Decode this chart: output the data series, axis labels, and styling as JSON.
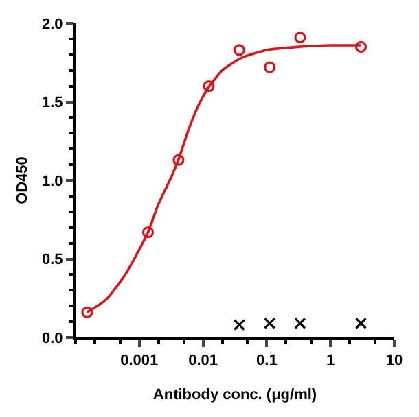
{
  "chart_data": {
    "type": "scatter",
    "xlabel": "Antibody conc. (μg/ml)",
    "ylabel": "OD450",
    "log": "x",
    "xlim": [
      0.0001,
      10
    ],
    "xticks": [
      0.001,
      0.01,
      0.1,
      1,
      10
    ],
    "ylim": [
      0,
      2.0
    ],
    "yticks": [
      {
        "value": 0,
        "label": "0.0"
      },
      0.5,
      {
        "value": 1,
        "label": "1.0"
      },
      1.5,
      {
        "value": 2,
        "label": "2.0"
      }
    ],
    "series": [
      {
        "type": "line",
        "color": "#d9141a",
        "line_style": "solid",
        "marker": "none",
        "x": [
          0.00015,
          0.0003,
          0.0006,
          0.001,
          0.00137,
          0.002,
          0.003,
          0.0041,
          0.006,
          0.009,
          0.0126,
          0.02,
          0.04,
          0.1,
          0.3,
          1,
          3
        ],
        "values": [
          0.16,
          0.24,
          0.4,
          0.56,
          0.67,
          0.85,
          1.0,
          1.13,
          1.33,
          1.5,
          1.6,
          1.7,
          1.78,
          1.83,
          1.85,
          1.86,
          1.86
        ]
      },
      {
        "color": "#d9141a",
        "marker": "circle",
        "x": [
          0.000152,
          0.00137,
          0.00412,
          0.0123,
          0.037,
          0.111,
          0.333,
          3
        ],
        "values": [
          0.16,
          0.67,
          1.13,
          1.6,
          1.83,
          1.72,
          1.91,
          1.85
        ]
      },
      {
        "color": "#000000",
        "marker": "cross",
        "x": [
          0.037,
          0.111,
          0.333,
          3
        ],
        "values": [
          0.08,
          0.09,
          0.09,
          0.09
        ]
      }
    ]
  }
}
